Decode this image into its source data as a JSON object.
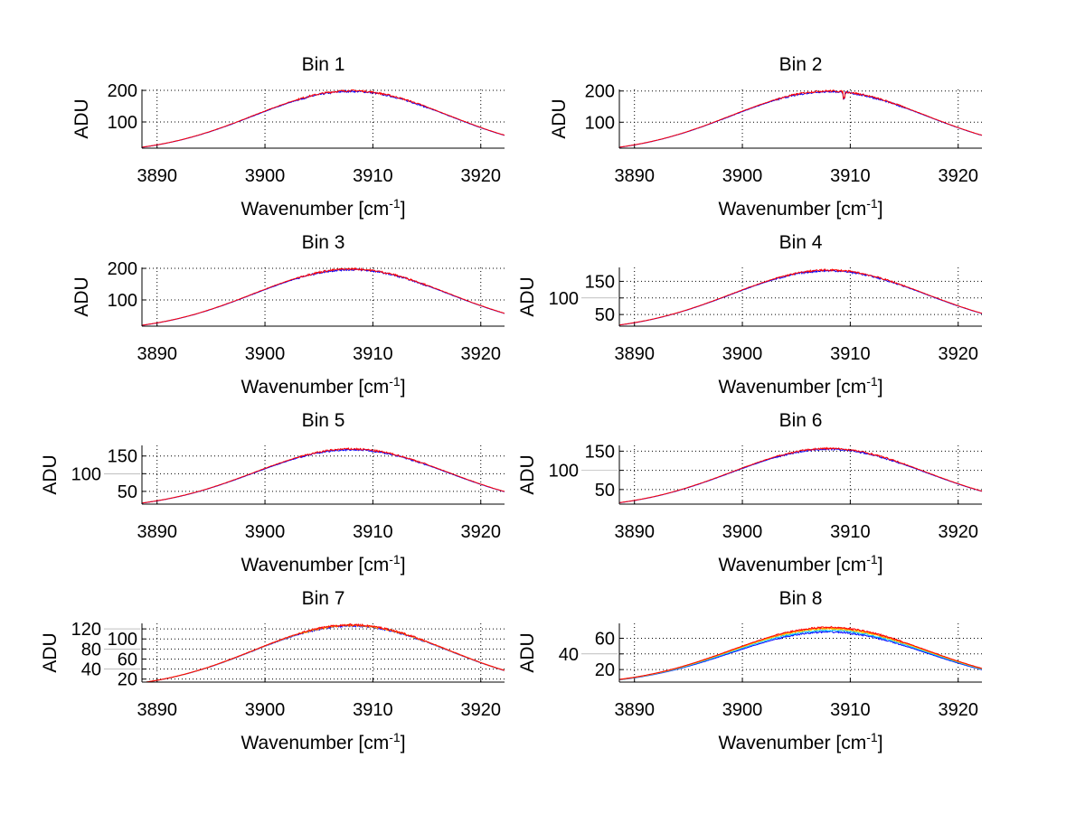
{
  "chart_data": [
    {
      "type": "line",
      "title": "Bin 1",
      "xlabel": "Wavenumber [cm",
      "xlabel_sup": "-1",
      "xlabel_end": "]",
      "ylabel": "ADU",
      "xlim": [
        3888.6,
        3922.2
      ],
      "ylim": [
        17,
        203
      ],
      "xticks": [
        3890,
        3900,
        3910,
        3920
      ],
      "yticks": [
        100,
        200
      ],
      "grid": true,
      "series": [
        {
          "color": "#0000ff",
          "peak": 197
        },
        {
          "color": "#ff0000",
          "peak": 199
        }
      ]
    },
    {
      "type": "line",
      "title": "Bin 2",
      "xlabel": "Wavenumber [cm",
      "xlabel_sup": "-1",
      "xlabel_end": "]",
      "ylabel": "ADU",
      "xlim": [
        3888.6,
        3922.2
      ],
      "ylim": [
        17,
        205
      ],
      "xticks": [
        3890,
        3900,
        3910,
        3920
      ],
      "yticks": [
        100,
        200
      ],
      "grid": true,
      "dip": 3909.4,
      "series": [
        {
          "color": "#0000ff",
          "peak": 198
        },
        {
          "color": "#ff0000",
          "peak": 200
        }
      ]
    },
    {
      "type": "line",
      "title": "Bin 3",
      "xlabel": "Wavenumber [cm",
      "xlabel_sup": "-1",
      "xlabel_end": "]",
      "ylabel": "ADU",
      "xlim": [
        3888.6,
        3922.2
      ],
      "ylim": [
        17,
        203
      ],
      "xticks": [
        3890,
        3900,
        3910,
        3920
      ],
      "yticks": [
        100,
        200
      ],
      "grid": true,
      "series": [
        {
          "color": "#0000ff",
          "peak": 196
        },
        {
          "color": "#ff0000",
          "peak": 198
        }
      ]
    },
    {
      "type": "line",
      "title": "Bin 4",
      "xlabel": "Wavenumber [cm",
      "xlabel_sup": "-1",
      "xlabel_end": "]",
      "ylabel": "ADU",
      "xlim": [
        3888.6,
        3922.2
      ],
      "ylim": [
        15,
        192
      ],
      "xticks": [
        3890,
        3900,
        3910,
        3920
      ],
      "yticks": [
        50,
        100,
        150
      ],
      "grid": true,
      "series": [
        {
          "color": "#0000ff",
          "peak": 182
        },
        {
          "color": "#ff0000",
          "peak": 184
        }
      ]
    },
    {
      "type": "line",
      "title": "Bin 5",
      "xlabel": "Wavenumber [cm",
      "xlabel_sup": "-1",
      "xlabel_end": "]",
      "ylabel": "ADU",
      "xlim": [
        3888.6,
        3922.2
      ],
      "ylim": [
        14,
        180
      ],
      "xticks": [
        3890,
        3900,
        3910,
        3920
      ],
      "yticks": [
        50,
        100,
        150
      ],
      "grid": true,
      "series": [
        {
          "color": "#0000ff",
          "peak": 168
        },
        {
          "color": "#ff0000",
          "peak": 170
        }
      ]
    },
    {
      "type": "line",
      "title": "Bin 6",
      "xlabel": "Wavenumber [cm",
      "xlabel_sup": "-1",
      "xlabel_end": "]",
      "ylabel": "ADU",
      "xlim": [
        3888.6,
        3922.2
      ],
      "ylim": [
        12,
        165
      ],
      "xticks": [
        3890,
        3900,
        3910,
        3920
      ],
      "yticks": [
        50,
        100,
        150
      ],
      "grid": true,
      "series": [
        {
          "color": "#0000ff",
          "peak": 155
        },
        {
          "color": "#ff0000",
          "peak": 157
        }
      ]
    },
    {
      "type": "line",
      "title": "Bin 7",
      "xlabel": "Wavenumber [cm",
      "xlabel_sup": "-1",
      "xlabel_end": "]",
      "ylabel": "ADU",
      "xlim": [
        3888.6,
        3922.2
      ],
      "ylim": [
        14,
        131
      ],
      "xticks": [
        3890,
        3900,
        3910,
        3920
      ],
      "yticks": [
        20,
        40,
        60,
        80,
        100,
        120
      ],
      "grid": true,
      "series": [
        {
          "color": "#0000ff",
          "peak": 126
        },
        {
          "color": "#ffaa00",
          "peak": 127
        },
        {
          "color": "#ff0000",
          "peak": 128
        }
      ]
    },
    {
      "type": "line",
      "title": "Bin 8",
      "xlabel": "Wavenumber [cm",
      "xlabel_sup": "-1",
      "xlabel_end": "]",
      "ylabel": "ADU",
      "xlim": [
        3888.6,
        3922.2
      ],
      "ylim": [
        4,
        79
      ],
      "xticks": [
        3890,
        3900,
        3910,
        3920
      ],
      "yticks": [
        20,
        40,
        60
      ],
      "grid": true,
      "series": [
        {
          "color": "#0000ff",
          "peak": 68
        },
        {
          "color": "#00bfff",
          "peak": 70
        },
        {
          "color": "#ffd700",
          "peak": 72
        },
        {
          "color": "#ff8000",
          "peak": 73
        },
        {
          "color": "#ff0000",
          "peak": 74
        }
      ]
    }
  ],
  "curve_model": {
    "center": 3908,
    "width": 12.8,
    "noise": 0.015
  }
}
